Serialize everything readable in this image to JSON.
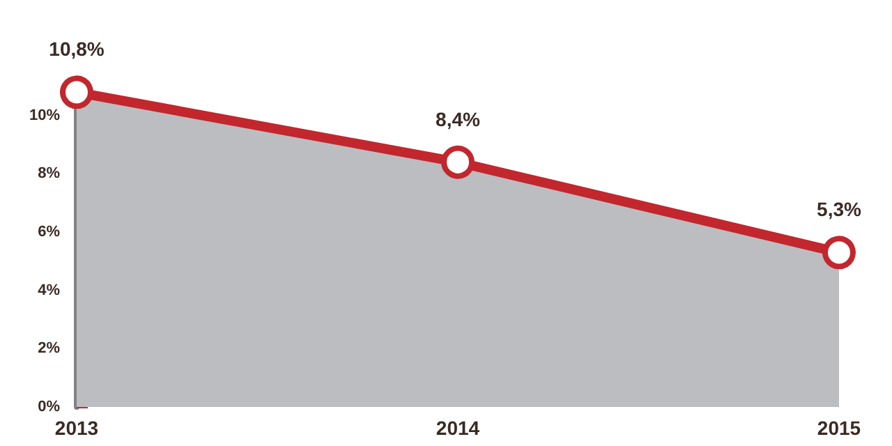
{
  "chart_data": {
    "type": "area",
    "categories": [
      "2013",
      "2014",
      "2015"
    ],
    "series": [
      {
        "color": "#c1272d",
        "values": [
          10.8,
          8.4,
          5.3
        ],
        "value_labels": [
          "10,8%",
          "8,4%",
          "5,3%"
        ]
      }
    ],
    "ylim": [
      0,
      11
    ],
    "yticks": [
      {
        "value": 0,
        "label": "0%"
      },
      {
        "value": 2,
        "label": "2%"
      },
      {
        "value": 4,
        "label": "4%"
      },
      {
        "value": 6,
        "label": "6%"
      },
      {
        "value": 8,
        "label": "8%"
      },
      {
        "value": 10,
        "label": "10%"
      }
    ],
    "grid": false,
    "marker": "circle",
    "line_style": "solid"
  }
}
